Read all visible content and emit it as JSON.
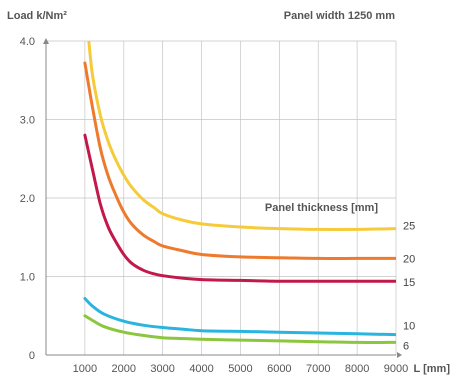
{
  "chart_data": {
    "type": "line",
    "y_title": "Load k/Nm²",
    "x_title": "L [mm]",
    "top_note": "Panel width 1250 mm",
    "legend_title": "Panel thickness  [mm]",
    "xlim": [
      0,
      9000
    ],
    "ylim": [
      0,
      4.0
    ],
    "x_ticks": [
      "1000",
      "2000",
      "3000",
      "4000",
      "5000",
      "6000",
      "7000",
      "8000",
      "9000"
    ],
    "y_ticks": [
      "0",
      "1.0",
      "2.0",
      "3.0",
      "4.0"
    ],
    "grid": true,
    "series": [
      {
        "name": "25",
        "color": "#f5cb3a",
        "points": [
          [
            1000,
            4.5
          ],
          [
            1100,
            4.0
          ],
          [
            1200,
            3.55
          ],
          [
            1400,
            3.05
          ],
          [
            1600,
            2.72
          ],
          [
            1800,
            2.48
          ],
          [
            2000,
            2.29
          ],
          [
            2200,
            2.14
          ],
          [
            2500,
            1.98
          ],
          [
            2800,
            1.87
          ],
          [
            3000,
            1.8
          ],
          [
            3500,
            1.72
          ],
          [
            4000,
            1.67
          ],
          [
            5000,
            1.63
          ],
          [
            6000,
            1.61
          ],
          [
            7000,
            1.6
          ],
          [
            8000,
            1.6
          ],
          [
            9000,
            1.61
          ]
        ]
      },
      {
        "name": "20",
        "color": "#ee7a2d",
        "points": [
          [
            1000,
            3.72
          ],
          [
            1200,
            3.14
          ],
          [
            1400,
            2.63
          ],
          [
            1600,
            2.28
          ],
          [
            1800,
            2.03
          ],
          [
            2000,
            1.82
          ],
          [
            2200,
            1.67
          ],
          [
            2500,
            1.53
          ],
          [
            2800,
            1.44
          ],
          [
            3000,
            1.39
          ],
          [
            3500,
            1.33
          ],
          [
            4000,
            1.28
          ],
          [
            5000,
            1.25
          ],
          [
            6000,
            1.24
          ],
          [
            7000,
            1.23
          ],
          [
            8000,
            1.23
          ],
          [
            9000,
            1.23
          ]
        ]
      },
      {
        "name": "15",
        "color": "#c2184a",
        "points": [
          [
            1000,
            2.8
          ],
          [
            1200,
            2.35
          ],
          [
            1400,
            1.92
          ],
          [
            1600,
            1.63
          ],
          [
            1800,
            1.44
          ],
          [
            2000,
            1.28
          ],
          [
            2200,
            1.17
          ],
          [
            2500,
            1.08
          ],
          [
            2800,
            1.03
          ],
          [
            3000,
            1.01
          ],
          [
            3500,
            0.98
          ],
          [
            4000,
            0.96
          ],
          [
            5000,
            0.95
          ],
          [
            6000,
            0.94
          ],
          [
            7000,
            0.94
          ],
          [
            8000,
            0.94
          ],
          [
            9000,
            0.94
          ]
        ]
      },
      {
        "name": "10",
        "color": "#2ab4e0",
        "points": [
          [
            1000,
            0.72
          ],
          [
            1200,
            0.62
          ],
          [
            1500,
            0.52
          ],
          [
            2000,
            0.43
          ],
          [
            2500,
            0.38
          ],
          [
            3000,
            0.35
          ],
          [
            3500,
            0.33
          ],
          [
            4000,
            0.31
          ],
          [
            5000,
            0.3
          ],
          [
            6000,
            0.29
          ],
          [
            7000,
            0.28
          ],
          [
            8000,
            0.27
          ],
          [
            9000,
            0.26
          ]
        ]
      },
      {
        "name": "6",
        "color": "#8cc63f",
        "points": [
          [
            1000,
            0.5
          ],
          [
            1200,
            0.44
          ],
          [
            1500,
            0.36
          ],
          [
            2000,
            0.29
          ],
          [
            2500,
            0.25
          ],
          [
            3000,
            0.22
          ],
          [
            3500,
            0.21
          ],
          [
            4000,
            0.2
          ],
          [
            5000,
            0.19
          ],
          [
            6000,
            0.18
          ],
          [
            7000,
            0.17
          ],
          [
            8000,
            0.16
          ],
          [
            9000,
            0.16
          ]
        ]
      }
    ]
  }
}
